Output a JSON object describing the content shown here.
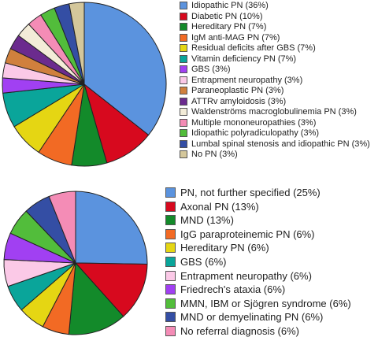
{
  "chart_data": [
    {
      "type": "pie",
      "title": "",
      "legend_position": "right",
      "start": "12 o'clock, clockwise",
      "slices": [
        {
          "label": "Idiopathic PN (36%)",
          "value": 36,
          "color": "#5b93de"
        },
        {
          "label": "Diabetic PN (10%)",
          "value": 10,
          "color": "#d7091e"
        },
        {
          "label": "Hereditary PN (7%)",
          "value": 7,
          "color": "#138a2a"
        },
        {
          "label": "IgM anti-MAG PN (7%)",
          "value": 7,
          "color": "#f26a24"
        },
        {
          "label": "Residual deficits after GBS (7%)",
          "value": 7,
          "color": "#e5d613"
        },
        {
          "label": "Vitamin deficiency PN (7%)",
          "value": 7,
          "color": "#0aa59a"
        },
        {
          "label": "GBS (3%)",
          "value": 3,
          "color": "#a140f2"
        },
        {
          "label": "Entrapment neuropathy (3%)",
          "value": 3,
          "color": "#fbc9e7"
        },
        {
          "label": "Paraneoplastic PN (3%)",
          "value": 3,
          "color": "#d0803d"
        },
        {
          "label": "ATTRv amyloidosis (3%)",
          "value": 3,
          "color": "#6b2b8e"
        },
        {
          "label": "Waldenströms macroglobulinemia PN (3%)",
          "value": 3,
          "color": "#f3ecd8"
        },
        {
          "label": "Multiple mononeuropathies (3%)",
          "value": 3,
          "color": "#f48cb6"
        },
        {
          "label": "Idiopathic polyradiculopathy (3%)",
          "value": 3,
          "color": "#52bd3b"
        },
        {
          "label": "Lumbal spinal stenosis and idiopathic PN (3%)",
          "value": 3,
          "color": "#344ea4"
        },
        {
          "label": "No PN (3%)",
          "value": 3,
          "color": "#d4c79b"
        }
      ]
    },
    {
      "type": "pie",
      "title": "",
      "legend_position": "right",
      "start": "12 o'clock, clockwise",
      "slices": [
        {
          "label": "PN, not further specified (25%)",
          "value": 25,
          "color": "#5b93de"
        },
        {
          "label": "Axonal PN (13%)",
          "value": 13,
          "color": "#d7091e"
        },
        {
          "label": "MND (13%)",
          "value": 13,
          "color": "#138a2a"
        },
        {
          "label": "IgG paraproteinemic PN (6%)",
          "value": 6,
          "color": "#f26a24"
        },
        {
          "label": "Hereditary PN (6%)",
          "value": 6,
          "color": "#e5d613"
        },
        {
          "label": "GBS (6%)",
          "value": 6,
          "color": "#0aa59a"
        },
        {
          "label": "Entrapment neuropathy (6%)",
          "value": 6,
          "color": "#fbc9e7"
        },
        {
          "label": "Friedrech's ataxia (6%)",
          "value": 6,
          "color": "#a140f2"
        },
        {
          "label": "MMN, IBM or Sjögren syndrome (6%)",
          "value": 6,
          "color": "#52bd3b"
        },
        {
          "label": "MND or demyelinating PN (6%)",
          "value": 6,
          "color": "#344ea4"
        },
        {
          "label": "No referral diagnosis (6%)",
          "value": 6,
          "color": "#f48cb6"
        }
      ]
    }
  ]
}
